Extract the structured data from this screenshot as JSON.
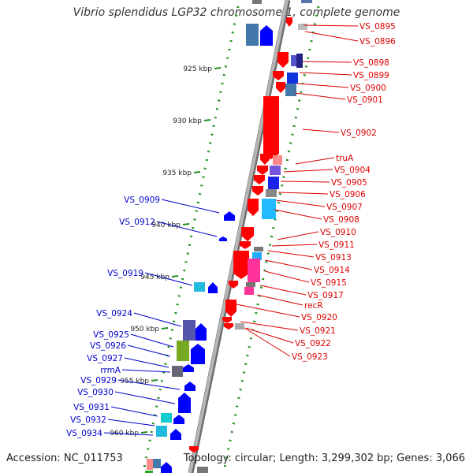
{
  "title": "Vibrio splendidus LGP32 chromosome 1, complete genome",
  "accession": "Accession: NC_011753",
  "summary": "Topology: circular; Length: 3,299,302 bp; Genes: 3,066",
  "colors": {
    "forward_gene": "#ff0000",
    "reverse_gene": "#0000ff",
    "forward_label": "#dd0000",
    "reverse_label": "#0000cc",
    "backbone": "#9a9a9a",
    "scale_dots": "#1f8f1f"
  },
  "scale_ticks": [
    "925 kbp",
    "930 kbp",
    "935 kbp",
    "940 kbp",
    "945 kbp",
    "950 kbp",
    "955 kbp",
    "960 kbp"
  ],
  "forward_labels": [
    "VS_0895",
    "VS_0896",
    "VS_0898",
    "VS_0899",
    "VS_0900",
    "VS_0901",
    "VS_0902",
    "truA",
    "VS_0904",
    "VS_0905",
    "VS_0906",
    "VS_0907",
    "VS_0908",
    "VS_0910",
    "VS_0911",
    "VS_0913",
    "VS_0914",
    "VS_0915",
    "VS_0917",
    "recR",
    "VS_0920",
    "VS_0921",
    "VS_0922",
    "VS_0923"
  ],
  "reverse_labels": [
    "VS_0909",
    "VS_0912",
    "VS_0919",
    "VS_0924",
    "VS_0925",
    "VS_0926",
    "VS_0927",
    "rrmA",
    "VS_0929",
    "VS_0930",
    "VS_0931",
    "VS_0932",
    "VS_0934"
  ]
}
